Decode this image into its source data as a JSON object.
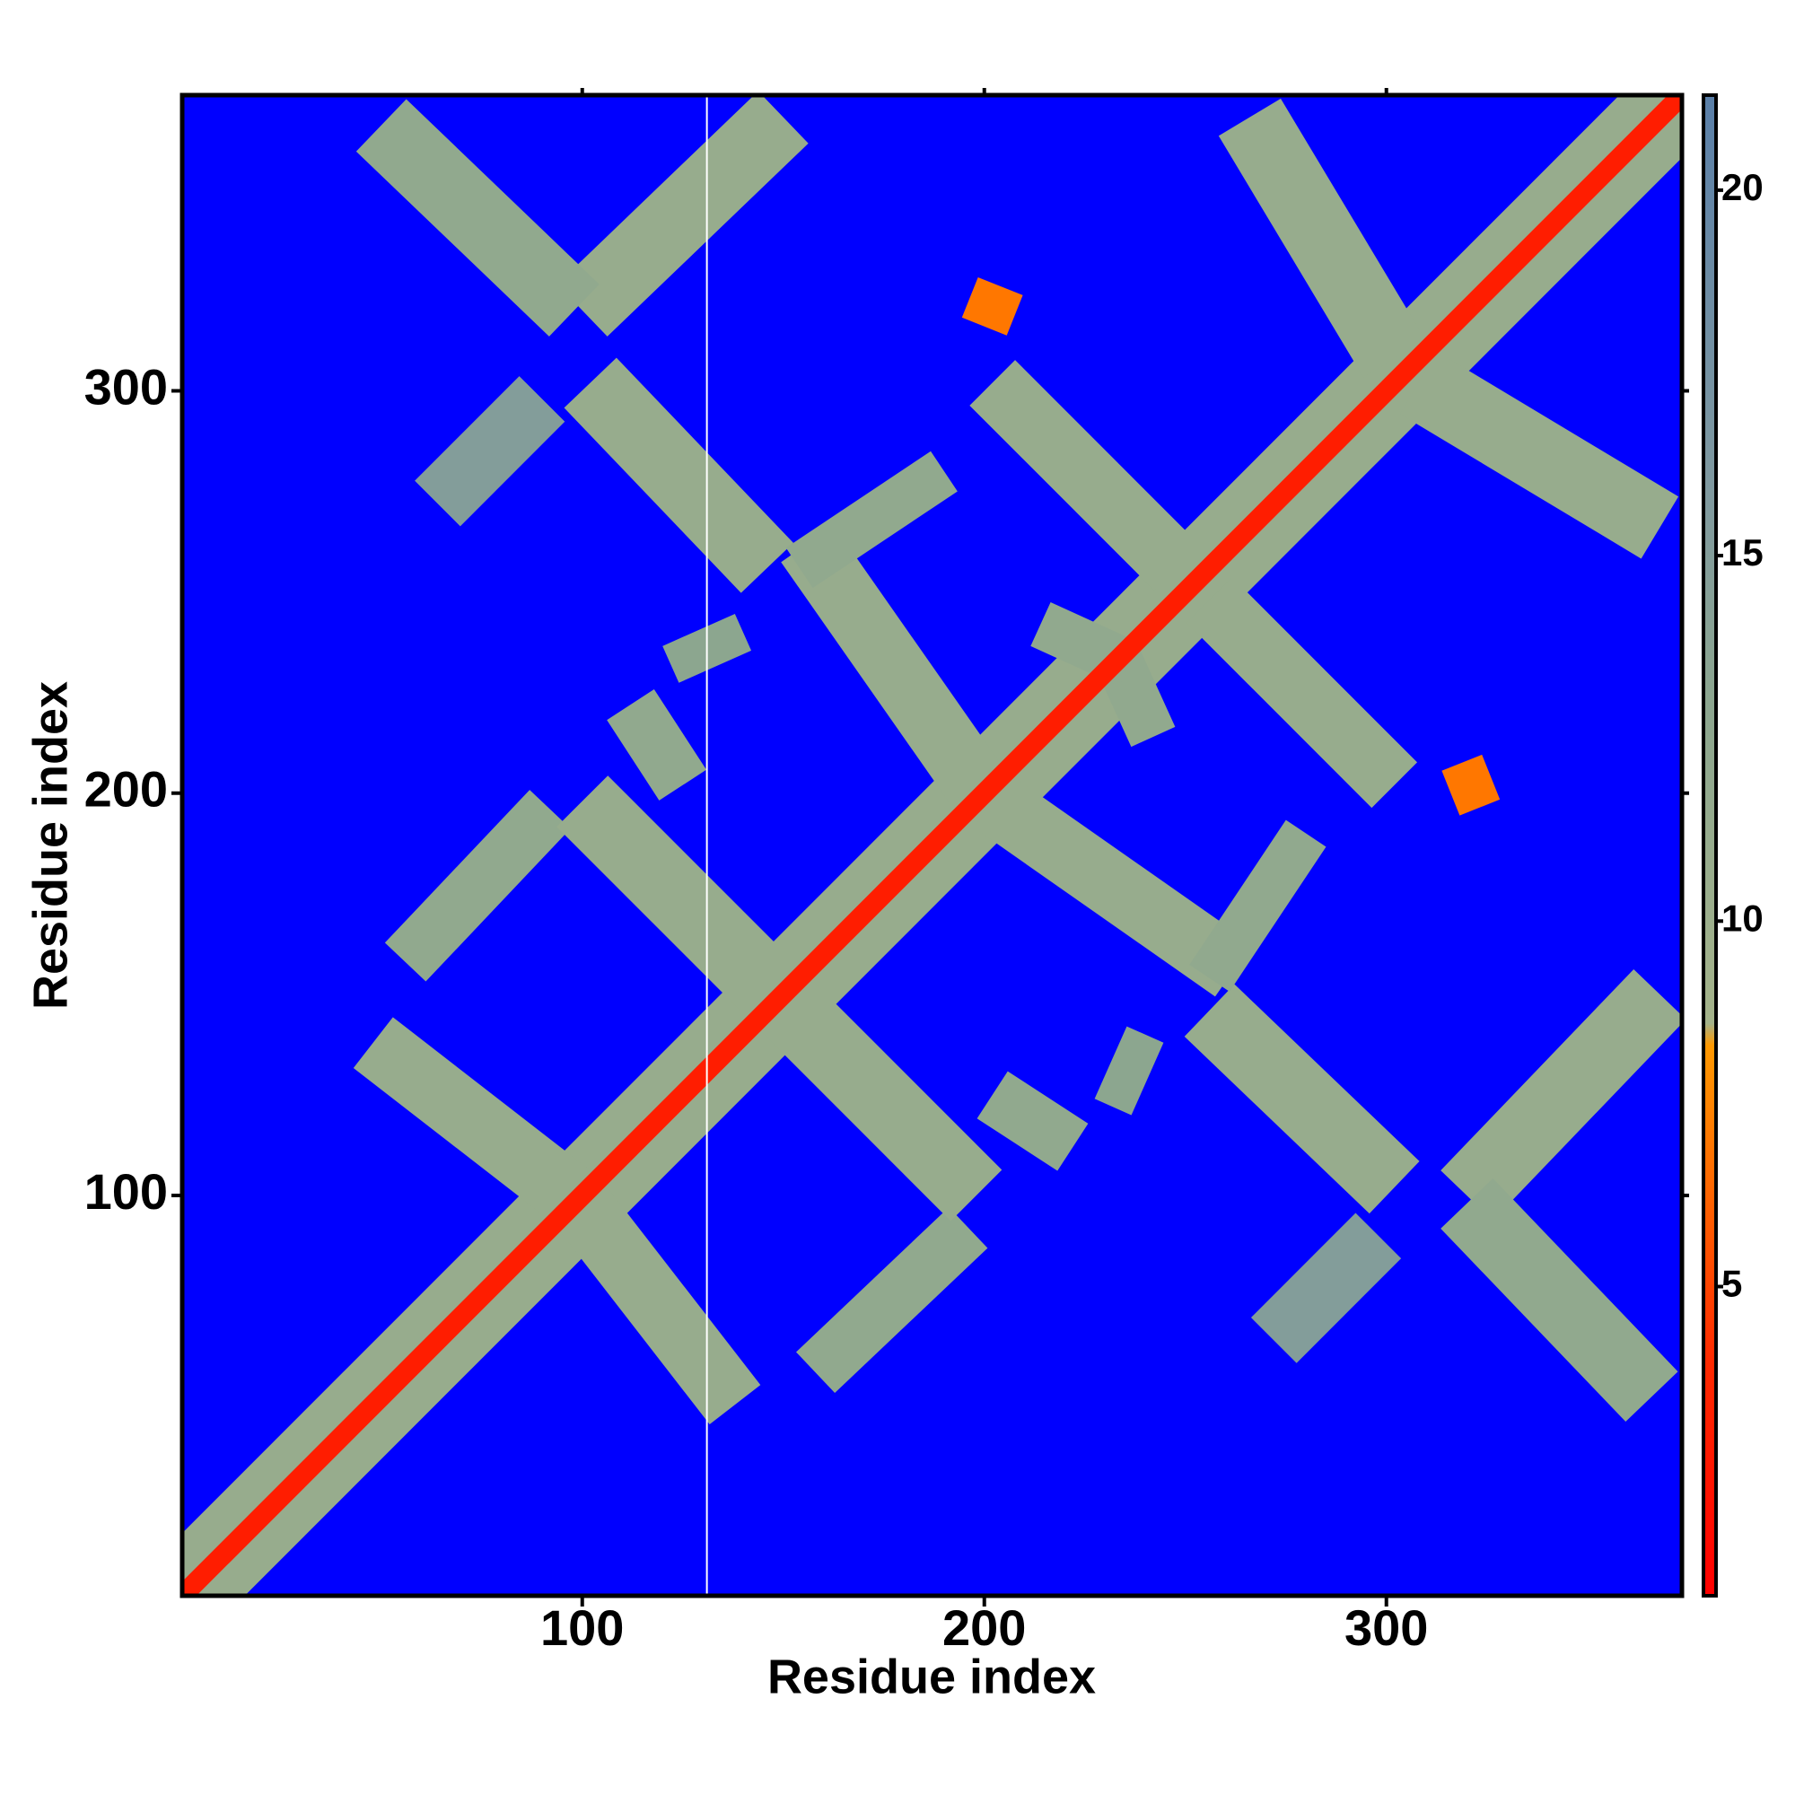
{
  "chart_data": {
    "type": "heatmap",
    "xlabel": "Residue index",
    "ylabel": "Residue index",
    "xlim": [
      0.5,
      373.5
    ],
    "ylim": [
      0.5,
      373.5
    ],
    "xticks": [
      100,
      200,
      300
    ],
    "yticks": [
      100,
      200,
      300
    ],
    "background_color": "#0000ff",
    "clim": [
      0.77,
      21.3
    ],
    "cticks": [
      5,
      10,
      15,
      20
    ],
    "colorscale": [
      [
        0.77,
        "#ff0000"
      ],
      [
        4,
        "#ff2a00"
      ],
      [
        8.3,
        "#ff9900"
      ],
      [
        8.6,
        "#a4b38a"
      ],
      [
        13,
        "#8ca68f"
      ],
      [
        16,
        "#7f99a0"
      ],
      [
        21.3,
        "#5a7fa8"
      ]
    ],
    "missing_x": [
      131
    ],
    "bands": [
      {
        "x": [
          1,
          373
        ],
        "y": [
          1,
          373
        ],
        "width": 22,
        "value": 11
      },
      {
        "x": [
          100,
          138
        ],
        "y": [
          97,
          48
        ],
        "width": 16,
        "value": 11
      },
      {
        "x": [
          97,
          48
        ],
        "y": [
          100,
          138
        ],
        "width": 16,
        "value": 11
      },
      {
        "x": [
          158,
          196
        ],
        "y": [
          56,
          92
        ],
        "width": 14,
        "value": 12
      },
      {
        "x": [
          56,
          92
        ],
        "y": [
          158,
          196
        ],
        "width": 14,
        "value": 12
      },
      {
        "x": [
          150,
          198
        ],
        "y": [
          148,
          100
        ],
        "width": 18,
        "value": 11
      },
      {
        "x": [
          148,
          100
        ],
        "y": [
          150,
          198
        ],
        "width": 18,
        "value": 11
      },
      {
        "x": [
          202,
          222
        ],
        "y": [
          125,
          112
        ],
        "width": 14,
        "value": 12
      },
      {
        "x": [
          125,
          112
        ],
        "y": [
          202,
          222
        ],
        "width": 14,
        "value": 12
      },
      {
        "x": [
          232,
          240
        ],
        "y": [
          122,
          140
        ],
        "width": 10,
        "value": 13
      },
      {
        "x": [
          122,
          140
        ],
        "y": [
          232,
          240
        ],
        "width": 10,
        "value": 13
      },
      {
        "x": [
          256,
          302
        ],
        "y": [
          146,
          102
        ],
        "width": 18,
        "value": 11
      },
      {
        "x": [
          146,
          102
        ],
        "y": [
          256,
          302
        ],
        "width": 18,
        "value": 11
      },
      {
        "x": [
          320,
          368
        ],
        "y": [
          100,
          150
        ],
        "width": 18,
        "value": 11
      },
      {
        "x": [
          100,
          150
        ],
        "y": [
          320,
          368
        ],
        "width": 18,
        "value": 11
      },
      {
        "x": [
          320,
          366
        ],
        "y": [
          98,
          50
        ],
        "width": 18,
        "value": 12
      },
      {
        "x": [
          98,
          50
        ],
        "y": [
          320,
          366
        ],
        "width": 18,
        "value": 12
      },
      {
        "x": [
          272,
          298
        ],
        "y": [
          64,
          90
        ],
        "width": 16,
        "value": 15
      },
      {
        "x": [
          64,
          90
        ],
        "y": [
          272,
          298
        ],
        "width": 16,
        "value": 15
      },
      {
        "x": [
          202,
          262
        ],
        "y": [
          198,
          156
        ],
        "width": 16,
        "value": 11
      },
      {
        "x": [
          198,
          156
        ],
        "y": [
          202,
          262
        ],
        "width": 16,
        "value": 11
      },
      {
        "x": [
          256,
          280
        ],
        "y": [
          154,
          190
        ],
        "width": 12,
        "value": 12
      },
      {
        "x": [
          154,
          190
        ],
        "y": [
          256,
          280
        ],
        "width": 12,
        "value": 12
      },
      {
        "x": [
          256,
          302
        ],
        "y": [
          248,
          202
        ],
        "width": 16,
        "value": 11
      },
      {
        "x": [
          248,
          202
        ],
        "y": [
          256,
          302
        ],
        "width": 16,
        "value": 11
      },
      {
        "x": [
          308,
          368
        ],
        "y": [
          302,
          266
        ],
        "width": 18,
        "value": 11
      },
      {
        "x": [
          302,
          266
        ],
        "y": [
          308,
          368
        ],
        "width": 18,
        "value": 11
      },
      {
        "x": [
          232,
          242
        ],
        "y": [
          236,
          214
        ],
        "width": 12,
        "value": 12
      },
      {
        "x": [
          236,
          214
        ],
        "y": [
          232,
          242
        ],
        "width": 12,
        "value": 12
      },
      {
        "x": [
          316,
          326
        ],
        "y": [
          200,
          204
        ],
        "width": 12,
        "value": 7
      },
      {
        "x": [
          200,
          204
        ],
        "y": [
          316,
          326
        ],
        "width": 12,
        "value": 7
      },
      {
        "x": [
          1,
          373
        ],
        "y": [
          1,
          373
        ],
        "width": 5,
        "value": 3
      }
    ]
  }
}
